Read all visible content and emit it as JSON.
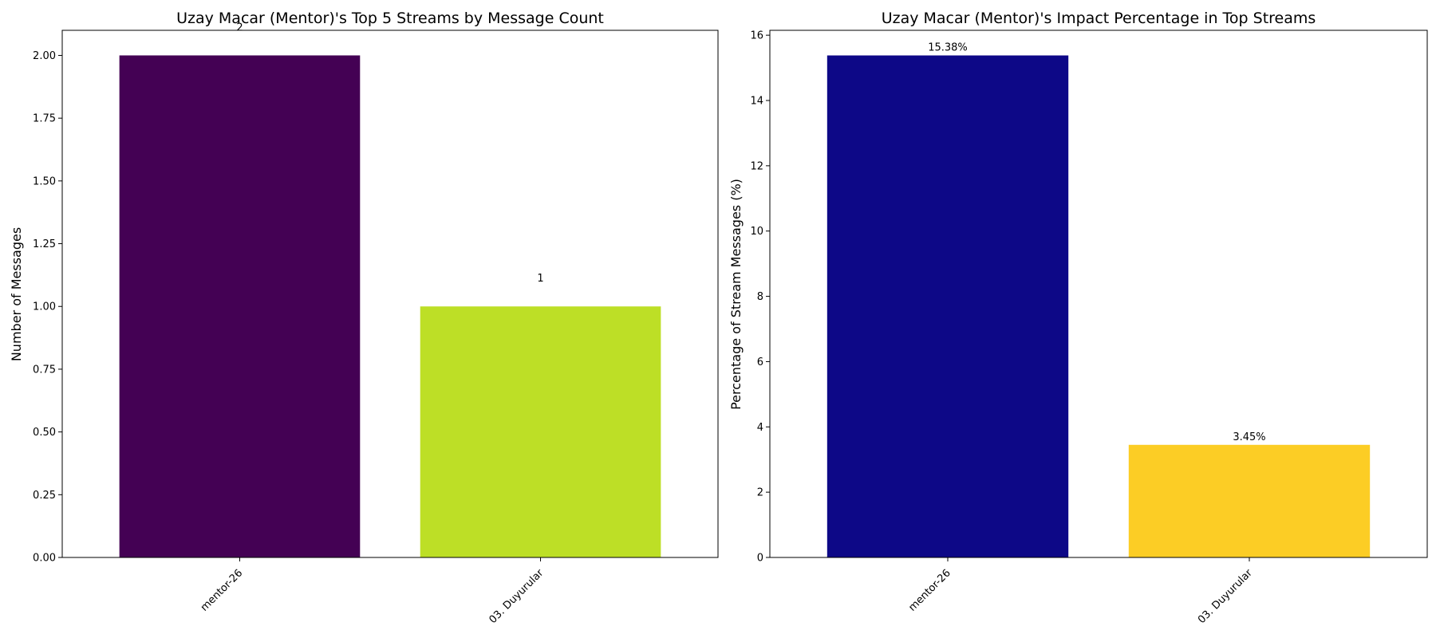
{
  "chart_data": [
    {
      "type": "bar",
      "title": "Uzay Macar (Mentor)'s Top 5 Streams by Message Count",
      "xlabel": "",
      "ylabel": "Number of Messages",
      "categories": [
        "mentor-26",
        "03. Duyurular"
      ],
      "values": [
        2,
        1
      ],
      "data_labels": [
        "2",
        "1"
      ],
      "colors": [
        "#440154",
        "#bddf26"
      ],
      "ylim": [
        0,
        2.1
      ],
      "yticks": [
        0,
        0.25,
        0.5,
        0.75,
        1.0,
        1.25,
        1.5,
        1.75,
        2.0
      ],
      "ytick_labels": [
        "0.00",
        "0.25",
        "0.50",
        "0.75",
        "1.00",
        "1.25",
        "1.50",
        "1.75",
        "2.00"
      ],
      "grid": false
    },
    {
      "type": "bar",
      "title": "Uzay Macar (Mentor)'s Impact Percentage in Top Streams",
      "xlabel": "",
      "ylabel": "Percentage of Stream Messages (%)",
      "categories": [
        "mentor-26",
        "03. Duyurular"
      ],
      "values": [
        15.38,
        3.45
      ],
      "data_labels": [
        "15.38%",
        "3.45%"
      ],
      "colors": [
        "#0d0887",
        "#fccd25"
      ],
      "ylim": [
        0,
        16.15
      ],
      "yticks": [
        0,
        2,
        4,
        6,
        8,
        10,
        12,
        14,
        16
      ],
      "ytick_labels": [
        "0",
        "2",
        "4",
        "6",
        "8",
        "10",
        "12",
        "14",
        "16"
      ],
      "grid": false
    }
  ]
}
